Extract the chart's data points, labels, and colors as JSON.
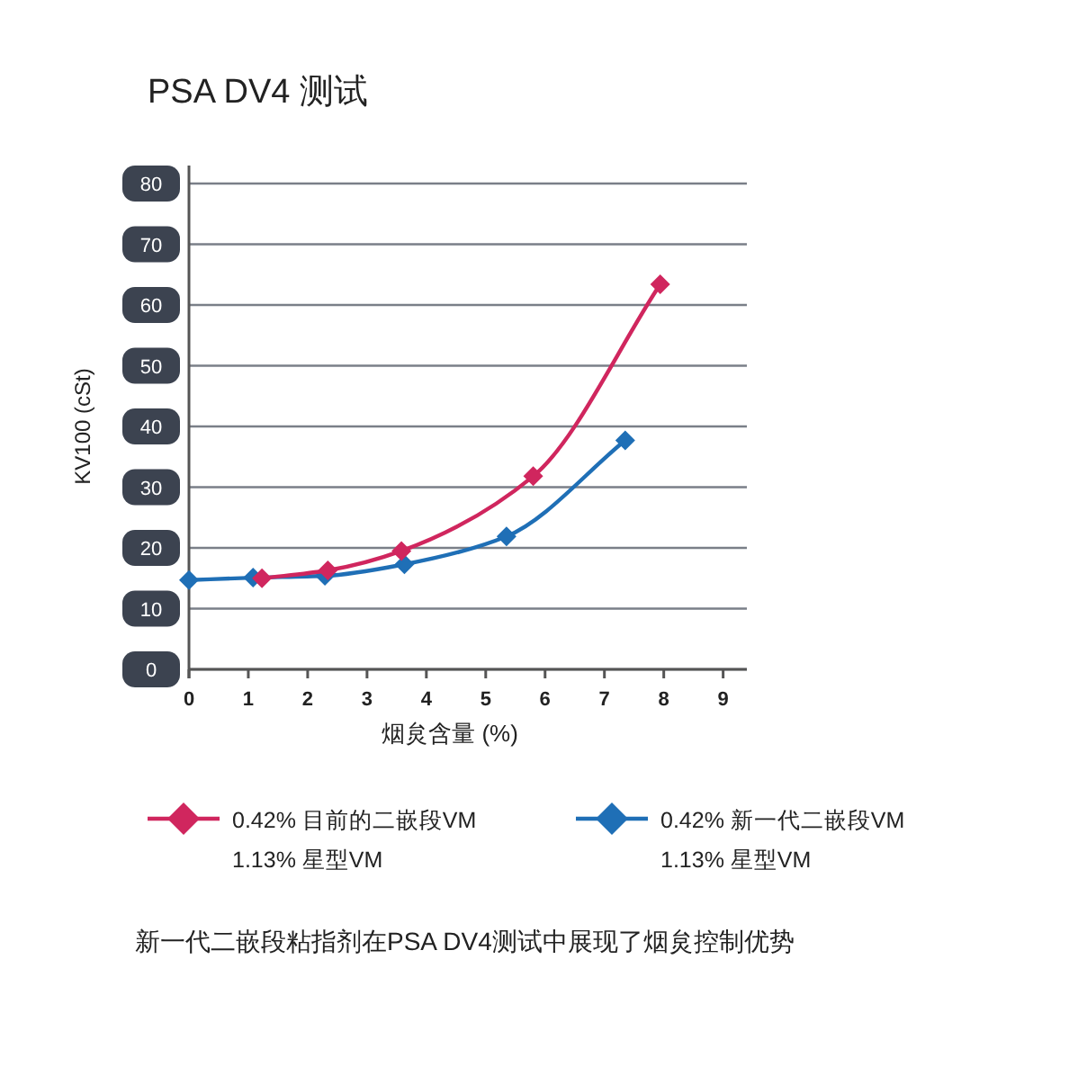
{
  "chart_data": {
    "type": "line",
    "title": "PSA DV4 测试",
    "xlabel": "烟炱含量 (%)",
    "ylabel": "KV100 (cSt)",
    "xlim": [
      0,
      9.4
    ],
    "xticks": [
      0,
      1,
      2,
      3,
      4,
      5,
      6,
      7,
      8,
      9
    ],
    "ylim": [
      0,
      80
    ],
    "yticks": [
      0,
      10,
      20,
      30,
      40,
      50,
      60,
      70,
      80
    ],
    "grid": "y",
    "marker": "diamond",
    "line_style": "solid",
    "legend": "bottom",
    "series": [
      {
        "name": "0.42% 目前的二嵌段VM\n1.13% 星型VM",
        "color": "#d0265e",
        "x": [
          1.23,
          2.34,
          3.58,
          5.8,
          7.94
        ],
        "values": [
          15.0,
          16.3,
          19.5,
          31.8,
          63.4
        ]
      },
      {
        "name": "0.42% 新一代二嵌段VM\n1.13% 星型VM",
        "color": "#1f6fb6",
        "x": [
          0,
          1.08,
          2.29,
          3.63,
          5.35,
          7.35
        ],
        "values": [
          14.7,
          15.1,
          15.4,
          17.3,
          21.9,
          37.7
        ]
      }
    ],
    "annotations": [
      "新一代二嵌段粘指剂在PSA DV4测试中展现了烟炱控制优势"
    ]
  }
}
